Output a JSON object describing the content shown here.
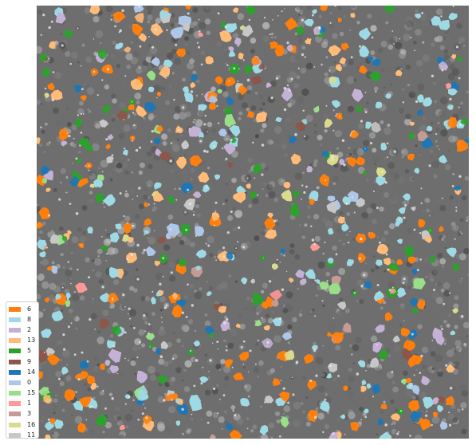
{
  "image": {
    "description_free": true,
    "background_color": "#6e6e6e",
    "legend": {
      "placement": "bottom-left",
      "entries": [
        {
          "label": "6",
          "color": "#ff7f0e"
        },
        {
          "label": "8",
          "color": "#9edae5"
        },
        {
          "label": "2",
          "color": "#c5b0d5"
        },
        {
          "label": "13",
          "color": "#ffbb78"
        },
        {
          "label": "5",
          "color": "#2ca02c"
        },
        {
          "label": "9",
          "color": "#8c564b"
        },
        {
          "label": "14",
          "color": "#1f77b4"
        },
        {
          "label": "0",
          "color": "#aec7e8"
        },
        {
          "label": "15",
          "color": "#98df8a"
        },
        {
          "label": "1",
          "color": "#ff9896"
        },
        {
          "label": "3",
          "color": "#c49c94"
        },
        {
          "label": "16",
          "color": "#dbdb8d"
        },
        {
          "label": "11",
          "color": "#c7c7c7"
        }
      ]
    }
  }
}
